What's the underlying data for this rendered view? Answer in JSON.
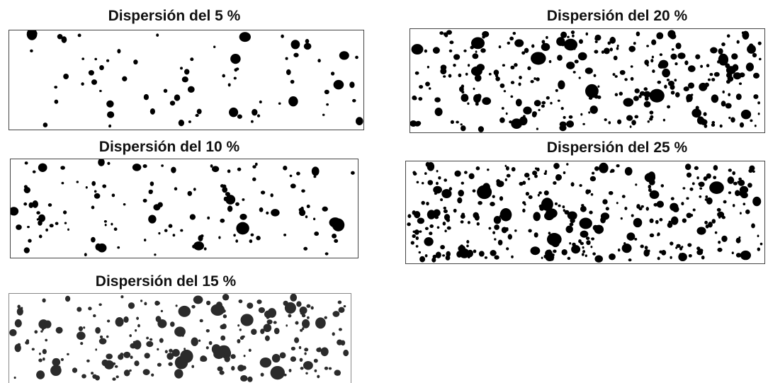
{
  "panels": [
    {
      "id": "p5",
      "title": "Dispersión del 5 %",
      "percent": 5,
      "dot_color": "#000000"
    },
    {
      "id": "p10",
      "title": "Dispersión del 10 %",
      "percent": 10,
      "dot_color": "#000000"
    },
    {
      "id": "p15",
      "title": "Dispersión del 15 %",
      "percent": 15,
      "dot_color": "#2b2b2b"
    },
    {
      "id": "p20",
      "title": "Dispersión del 20 %",
      "percent": 20,
      "dot_color": "#000000"
    },
    {
      "id": "p25",
      "title": "Dispersión del 25 %",
      "percent": 25,
      "dot_color": "#000000"
    }
  ]
}
